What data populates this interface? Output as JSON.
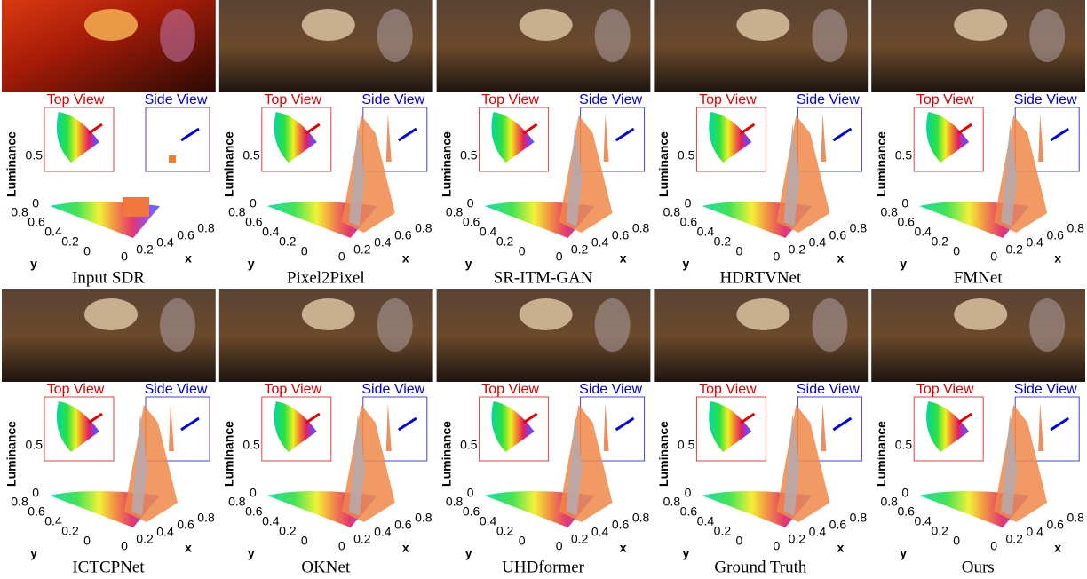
{
  "shared": {
    "top_view": "Top View",
    "side_view": "Side View",
    "luminance": "Luminance",
    "z_ticks": [
      "0",
      "0.5"
    ],
    "y_ticks": [
      "0.8",
      "0.6",
      "0.4",
      "0.2",
      "0"
    ],
    "x_ticks": [
      "0",
      "0.2",
      "0.4",
      "0.6",
      "0.8"
    ],
    "x_label": "x",
    "y_label": "y"
  },
  "panels": [
    {
      "caption": "Input SDR"
    },
    {
      "caption": "Pixel2Pixel"
    },
    {
      "caption": "SR-ITM-GAN"
    },
    {
      "caption": "HDRTVNet"
    },
    {
      "caption": "FMNet"
    },
    {
      "caption": "ICTCPNet"
    },
    {
      "caption": "OKNet"
    },
    {
      "caption": "UHDformer"
    },
    {
      "caption": "Ground Truth"
    },
    {
      "caption": "Ours"
    }
  ]
}
